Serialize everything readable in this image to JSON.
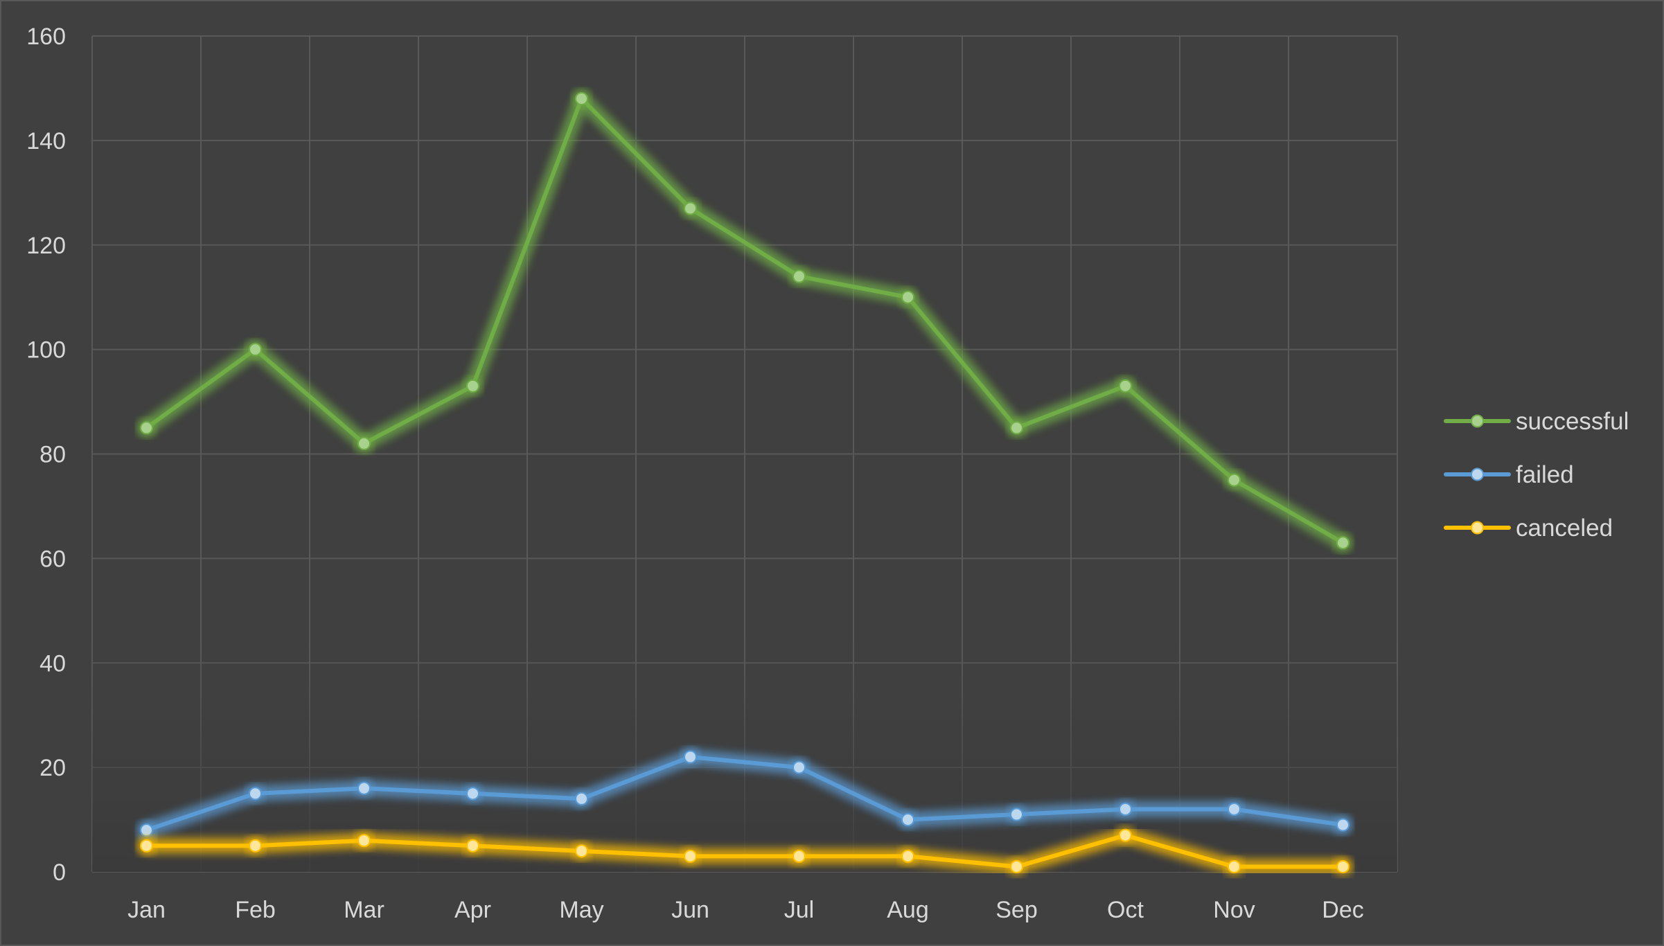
{
  "chart_data": {
    "type": "line",
    "title": "",
    "xlabel": "",
    "ylabel": "",
    "categories": [
      "Jan",
      "Feb",
      "Mar",
      "Apr",
      "May",
      "Jun",
      "Jul",
      "Aug",
      "Sep",
      "Oct",
      "Nov",
      "Dec"
    ],
    "ylim": [
      0,
      160
    ],
    "yticks": [
      0,
      20,
      40,
      60,
      80,
      100,
      120,
      140,
      160
    ],
    "grid": true,
    "legend_position": "right",
    "series": [
      {
        "name": "successful",
        "color": "#70ad47",
        "marker_color": "#a9d18e",
        "values": [
          85,
          100,
          82,
          93,
          148,
          127,
          114,
          110,
          85,
          93,
          75,
          63
        ]
      },
      {
        "name": "failed",
        "color": "#5b9bd5",
        "marker_color": "#bdd7ee",
        "values": [
          8,
          15,
          16,
          15,
          14,
          22,
          20,
          10,
          11,
          12,
          12,
          9
        ]
      },
      {
        "name": "canceled",
        "color": "#ffc000",
        "marker_color": "#ffe699",
        "values": [
          5,
          5,
          6,
          5,
          4,
          3,
          3,
          3,
          1,
          7,
          1,
          1
        ]
      }
    ]
  }
}
